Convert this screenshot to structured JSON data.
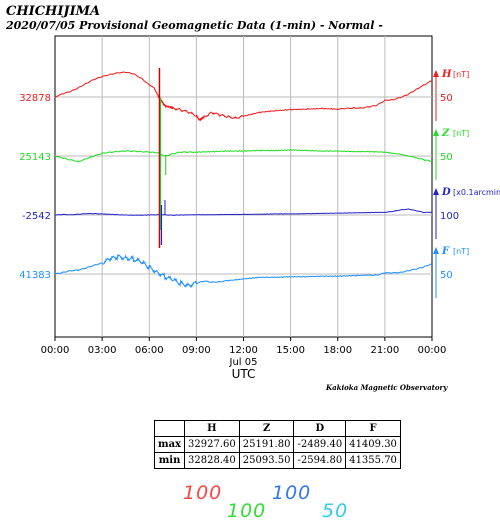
{
  "header": {
    "station": "CHICHIJIMA",
    "subtitle": "2020/07/05  Provisional Geomagnetic Data (1-min)  - Normal -"
  },
  "chart_data": {
    "type": "line",
    "xlabel": "UTC",
    "x_ticks": [
      "00:00",
      "03:00",
      "06:00",
      "09:00",
      "12:00",
      "15:00",
      "18:00",
      "21:00",
      "00:00"
    ],
    "x_sublabel": "Jul 05",
    "xlim": [
      0,
      24
    ],
    "grid": true,
    "series": [
      {
        "name": "H",
        "unit": "[nT]",
        "baseline": "32878",
        "scale_label": "50",
        "color": "#ee1c1c",
        "x": [
          0,
          0.5,
          1,
          1.5,
          2,
          2.5,
          3,
          3.5,
          4,
          4.5,
          5,
          5.5,
          6,
          6.3,
          6.6,
          6.8,
          7,
          7.3,
          7.5,
          8,
          8.5,
          9,
          9.2,
          9.5,
          10,
          10.5,
          11,
          11.5,
          12,
          13,
          14,
          15,
          16,
          17,
          18,
          18.5,
          19,
          19.5,
          20,
          20.5,
          21,
          21.5,
          22,
          22.5,
          23,
          23.5,
          24
        ],
        "y": [
          32878,
          32884,
          32888,
          32895,
          32903,
          32910,
          32915,
          32919,
          32922,
          32923,
          32920,
          32912,
          32900,
          32895,
          32878,
          32870,
          32862,
          32860,
          32858,
          32855,
          32850,
          32844,
          32836,
          32842,
          32850,
          32845,
          32842,
          32840,
          32843,
          32850,
          32853,
          32855,
          32856,
          32857,
          32856,
          32857,
          32858,
          32858,
          32860,
          32863,
          32872,
          32873,
          32877,
          32883,
          32892,
          32900,
          32908
        ]
      },
      {
        "name": "Z",
        "unit": "[nT]",
        "baseline": "25143",
        "scale_label": "50",
        "color": "#22dd22",
        "x": [
          0,
          0.5,
          1,
          1.5,
          2,
          2.5,
          3,
          3.5,
          4,
          4.5,
          5,
          5.5,
          6,
          6.5,
          7,
          7.5,
          8,
          8.5,
          9,
          10,
          11,
          12,
          13,
          14,
          15,
          16,
          17,
          18,
          19,
          20,
          21,
          22,
          23,
          23.5,
          24
        ],
        "y": [
          25143,
          25139,
          25136,
          25133,
          25138,
          25143,
          25148,
          25150,
          25151,
          25152,
          25152,
          25151,
          25150,
          25149,
          25143,
          25147,
          25150,
          25150,
          25150,
          25151,
          25152,
          25152,
          25153,
          25153,
          25154,
          25153,
          25152,
          25152,
          25151,
          25151,
          25150,
          25146,
          25140,
          25136,
          25133
        ]
      },
      {
        "name": "D",
        "unit": "[x0.1arcmin]",
        "baseline": "-2542",
        "scale_label": "100",
        "color": "#2222cc",
        "x": [
          0,
          0.5,
          1,
          1.5,
          2,
          2.5,
          3,
          4,
          5,
          6,
          6.5,
          7,
          7.5,
          8,
          9,
          10,
          11,
          12,
          13,
          14,
          15,
          16,
          17,
          18,
          19,
          20,
          21,
          21.5,
          22,
          22.5,
          23,
          23.5,
          24
        ],
        "y": [
          -2542,
          -2540,
          -2541,
          -2539,
          -2537,
          -2537,
          -2538,
          -2541,
          -2543,
          -2542,
          -2541,
          -2541,
          -2543,
          -2542,
          -2541,
          -2541,
          -2540,
          -2540,
          -2539,
          -2538,
          -2538,
          -2537,
          -2536,
          -2535,
          -2534,
          -2533,
          -2532,
          -2529,
          -2523,
          -2520,
          -2526,
          -2533,
          -2531
        ]
      },
      {
        "name": "F",
        "unit": "[nT]",
        "baseline": "41383",
        "scale_label": "50",
        "color": "#1e90ff",
        "x": [
          0,
          0.5,
          1,
          1.5,
          2,
          2.5,
          3,
          3.5,
          4,
          4.5,
          5,
          5.5,
          6,
          6.5,
          7,
          7.5,
          8,
          8.5,
          9,
          9.5,
          10,
          10.5,
          11,
          12,
          13,
          14,
          15,
          16,
          17,
          18,
          19,
          20,
          20.5,
          21,
          21.5,
          22,
          22.5,
          23,
          23.5,
          24
        ],
        "y": [
          41383,
          41386,
          41389,
          41390,
          41394,
          41399,
          41403,
          41410,
          41414,
          41413,
          41410,
          41404,
          41395,
          41387,
          41378,
          41372,
          41366,
          41363,
          41366,
          41370,
          41368,
          41369,
          41371,
          41374,
          41377,
          41377,
          41378,
          41378,
          41379,
          41379,
          41380,
          41381,
          41381,
          41385,
          41385,
          41386,
          41389,
          41392,
          41396,
          41402
        ]
      }
    ]
  },
  "observatory": "Kakioka Magnetic Observatory",
  "stats_table": {
    "columns": [
      "",
      "H",
      "Z",
      "D",
      "F"
    ],
    "rows": [
      [
        "max",
        "32927.60",
        "25191.80",
        "-2489.40",
        "41409.30"
      ],
      [
        "min",
        "32828.40",
        "25093.50",
        "-2594.80",
        "41355.70"
      ]
    ]
  },
  "scale_legend": [
    {
      "label": "100",
      "color": "#ff4444"
    },
    {
      "label": "100",
      "color": "#33dd33"
    },
    {
      "label": "100",
      "color": "#3377ee"
    },
    {
      "label": "50",
      "color": "#33ccee"
    }
  ]
}
